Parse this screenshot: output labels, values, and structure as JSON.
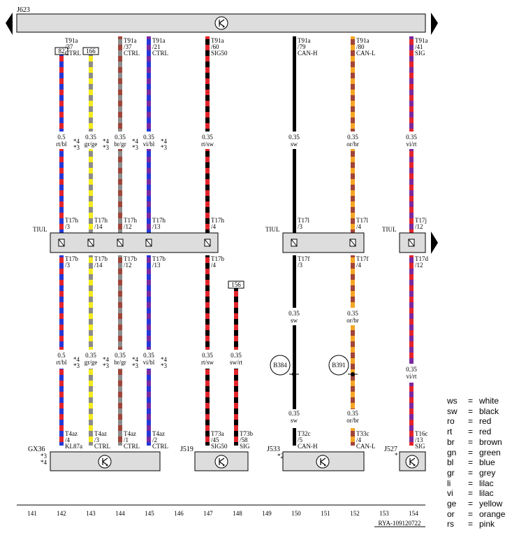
{
  "diagram": {
    "control_unit_top": "J623",
    "footer_code": "RYA-109120722",
    "columns": [
      "141",
      "142",
      "143",
      "144",
      "145",
      "146",
      "147",
      "148",
      "149",
      "150",
      "151",
      "152",
      "153",
      "154"
    ],
    "tiul_label": "TIUL",
    "components": {
      "gx36": "GX36",
      "gx36_notes": [
        "*3",
        "*4"
      ],
      "j519": "J519",
      "j533": "J533",
      "j533_note": "*2",
      "j527": "J527",
      "j527_note": "*"
    },
    "splices": [
      "B384",
      "B391"
    ],
    "ref_boxes": [
      "82",
      "166",
      "156"
    ],
    "wires": [
      {
        "id": "142",
        "top_pin": [
          "T91a",
          "/37"
        ],
        "top_sig": "CTRL",
        "upper": [
          "0.5",
          "rt/bl"
        ],
        "notes": [
          "*4",
          "*3"
        ],
        "conn_top": [
          "T17h",
          "/3"
        ],
        "conn_bot": [
          "T17b",
          "/3"
        ],
        "lower": [
          "0.5",
          "rt/bl"
        ],
        "lower_notes": [
          "*4",
          "*3"
        ],
        "end": [
          "T4az",
          "/4",
          "KL87a"
        ]
      },
      {
        "id": "143",
        "upper": [
          "0.35",
          "gr/ge"
        ],
        "notes": [
          "*4",
          "*3"
        ],
        "conn_top": [
          "T17h",
          "/14"
        ],
        "conn_bot": [
          "T17b",
          "/14"
        ],
        "lower": [
          "0.35",
          "gr/ge"
        ],
        "lower_notes": [
          "*4",
          "*3"
        ],
        "end": [
          "T4az",
          "/3",
          "CTRL"
        ]
      },
      {
        "id": "144",
        "top_pin": [
          "T91a",
          "/37"
        ],
        "top_sig": "CTRL",
        "upper": [
          "0.35",
          "br/gr"
        ],
        "notes": [
          "*4",
          "*3"
        ],
        "conn_top": [
          "T17h",
          "/12"
        ],
        "conn_bot": [
          "T17b",
          "/12"
        ],
        "lower": [
          "0.35",
          "br/gr"
        ],
        "lower_notes": [
          "*4",
          "*3"
        ],
        "end": [
          "T4az",
          "/1",
          "CTRL"
        ]
      },
      {
        "id": "145",
        "top_pin": [
          "T91a",
          "/21"
        ],
        "top_sig": "CTRL",
        "upper": [
          "0.35",
          "vi/bl"
        ],
        "notes": [
          "*4",
          "*3"
        ],
        "conn_top": [
          "T17h",
          "/13"
        ],
        "conn_bot": [
          "T17b",
          "/13"
        ],
        "lower": [
          "0.35",
          "vi/bl"
        ],
        "lower_notes": [
          "*4",
          "*3"
        ],
        "end": [
          "T4az",
          "/2",
          "CTRL"
        ]
      },
      {
        "id": "147",
        "top_pin": [
          "T91a",
          "/60"
        ],
        "top_sig": "SIG50",
        "upper": [
          "0.35",
          "rt/sw"
        ],
        "conn_top": [
          "T17h",
          "/4"
        ],
        "conn_bot": [
          "T17b",
          "/4"
        ],
        "lower": [
          "0.35",
          "rt/sw"
        ],
        "end": [
          "T73a",
          "/45",
          "SIG50"
        ]
      },
      {
        "id": "148",
        "lower": [
          "0.35",
          "sw/rt"
        ],
        "end": [
          "T73b",
          "/58",
          "SIG"
        ]
      },
      {
        "id": "150",
        "top_pin": [
          "T91a",
          "/79"
        ],
        "top_sig": "CAN-H",
        "upper": [
          "0.35",
          "sw"
        ],
        "conn_top": [
          "T17l",
          "/3"
        ],
        "conn_bot": [
          "T17f",
          "/3"
        ],
        "mid": [
          "0.35",
          "sw"
        ],
        "lower": [
          "0.35",
          "sw"
        ],
        "end": [
          "T32c",
          "/5",
          "CAN-H"
        ]
      },
      {
        "id": "152",
        "top_pin": [
          "T91a",
          "/80"
        ],
        "top_sig": "CAN-L",
        "upper": [
          "0.35",
          "or/br"
        ],
        "conn_top": [
          "T17l",
          "/4"
        ],
        "conn_bot": [
          "T17f",
          "/4"
        ],
        "mid": [
          "0.35",
          "or/br"
        ],
        "lower": [
          "0.35",
          "or/br"
        ],
        "end": [
          "T33c",
          "/4",
          "CAN-L"
        ]
      },
      {
        "id": "154",
        "top_pin": [
          "T91a",
          "/41"
        ],
        "top_sig": "SIG",
        "upper": [
          "0.35",
          "vi/rt"
        ],
        "conn_top": [
          "T17j",
          "/12"
        ],
        "conn_bot": [
          "T17d",
          "/12"
        ],
        "lower": [
          "0.35",
          "vi/rt"
        ],
        "end": [
          "T16c",
          "/13",
          "SIG"
        ]
      }
    ],
    "colors": {
      "red": "#e3242b",
      "blue": "#2438d8",
      "yellow": "#f4ec1c",
      "grey": "#8c8c8c",
      "brown": "#a0453a",
      "violet": "#7a2aa0",
      "black": "#000000",
      "orange": "#f5a623"
    }
  },
  "legend": [
    {
      "abbr": "ws",
      "eq": "=",
      "name": "white"
    },
    {
      "abbr": "sw",
      "eq": "=",
      "name": "black"
    },
    {
      "abbr": "ro",
      "eq": "=",
      "name": "red"
    },
    {
      "abbr": "rt",
      "eq": "=",
      "name": "red"
    },
    {
      "abbr": "br",
      "eq": "=",
      "name": "brown"
    },
    {
      "abbr": "gn",
      "eq": "=",
      "name": "green"
    },
    {
      "abbr": "bl",
      "eq": "=",
      "name": "blue"
    },
    {
      "abbr": "gr",
      "eq": "=",
      "name": "grey"
    },
    {
      "abbr": "li",
      "eq": "=",
      "name": "lilac"
    },
    {
      "abbr": "vi",
      "eq": "=",
      "name": "lilac"
    },
    {
      "abbr": "ge",
      "eq": "=",
      "name": "yellow"
    },
    {
      "abbr": "or",
      "eq": "=",
      "name": "orange"
    },
    {
      "abbr": "rs",
      "eq": "=",
      "name": "pink"
    }
  ]
}
